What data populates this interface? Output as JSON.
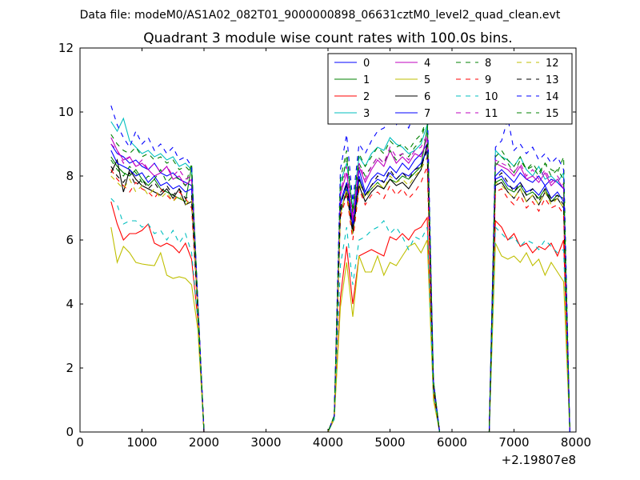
{
  "suptitle": "Data file: modeM0/AS1A02_082T01_9000000898_06631cztM0_level2_quad_clean.evt",
  "chart_data": {
    "type": "line",
    "title": "Quadrant 3 module wise count rates with 100.0s bins.",
    "xlabel": "",
    "ylabel": "",
    "x_offset_label": "+2.19807e8",
    "xlim": [
      0,
      8000
    ],
    "ylim": [
      0,
      12
    ],
    "xticks": [
      0,
      1000,
      2000,
      3000,
      4000,
      5000,
      6000,
      7000,
      8000
    ],
    "yticks": [
      0,
      2,
      4,
      6,
      8,
      10,
      12
    ],
    "legend_position": "top-right",
    "legend_columns": 4,
    "x": [
      500,
      600,
      700,
      800,
      900,
      1000,
      1100,
      1200,
      1300,
      1400,
      1500,
      1600,
      1700,
      1800,
      1900,
      2000,
      2100,
      4000,
      4100,
      4200,
      4300,
      4400,
      4500,
      4600,
      4700,
      4800,
      4900,
      5000,
      5100,
      5200,
      5300,
      5400,
      5500,
      5600,
      5700,
      5800,
      6600,
      6700,
      6800,
      6900,
      7000,
      7100,
      7200,
      7300,
      7400,
      7500,
      7600,
      7700,
      7800,
      7900
    ],
    "series": [
      {
        "name": "0",
        "color": "#0000ff",
        "dash": "solid",
        "values": [
          9.0,
          8.7,
          8.6,
          8.4,
          8.5,
          8.3,
          8.2,
          8.4,
          8.1,
          8.0,
          8.1,
          7.9,
          7.8,
          7.7,
          4.0,
          0,
          0,
          0,
          0.5,
          7.2,
          7.8,
          6.5,
          8.2,
          7.5,
          7.9,
          8.1,
          8.0,
          8.3,
          8.1,
          8.4,
          8.2,
          8.5,
          8.7,
          9.0,
          1.5,
          0,
          0,
          8.0,
          8.2,
          8.0,
          7.8,
          8.1,
          7.9,
          7.8,
          8.0,
          7.7,
          7.9,
          7.8,
          7.6,
          0
        ],
        "values_note": ""
      },
      {
        "name": "1",
        "color": "#008000",
        "dash": "solid",
        "values": [
          8.6,
          8.3,
          8.1,
          8.0,
          8.2,
          7.9,
          7.7,
          7.9,
          7.6,
          7.5,
          7.4,
          7.3,
          7.2,
          8.3,
          4.0,
          0,
          0,
          0,
          0.5,
          6.8,
          7.6,
          6.3,
          7.9,
          7.4,
          7.6,
          7.8,
          7.6,
          7.9,
          7.8,
          8.0,
          7.9,
          8.1,
          8.3,
          9.5,
          1.5,
          0,
          0,
          7.8,
          7.9,
          7.6,
          7.5,
          7.7,
          7.4,
          7.5,
          7.3,
          7.6,
          7.2,
          7.4,
          7.3,
          0
        ]
      },
      {
        "name": "2",
        "color": "#ff0000",
        "dash": "solid",
        "values": [
          7.2,
          6.5,
          6.0,
          6.2,
          6.2,
          6.3,
          6.5,
          5.9,
          5.8,
          5.9,
          5.8,
          5.6,
          5.9,
          5.4,
          3.5,
          0,
          0,
          0,
          0.4,
          4.2,
          5.8,
          4.0,
          5.5,
          5.6,
          5.7,
          5.6,
          5.5,
          6.1,
          6.0,
          6.2,
          6.0,
          6.3,
          6.4,
          6.7,
          1.2,
          0,
          0,
          6.6,
          6.4,
          6.0,
          6.2,
          5.8,
          5.9,
          5.6,
          5.8,
          5.7,
          5.9,
          5.5,
          6.0,
          0
        ]
      },
      {
        "name": "3",
        "color": "#00bfbf",
        "dash": "solid",
        "values": [
          9.7,
          9.4,
          9.8,
          9.1,
          8.9,
          8.7,
          8.8,
          8.6,
          8.7,
          8.5,
          8.6,
          8.3,
          8.4,
          8.2,
          4.0,
          0,
          0,
          0,
          0.5,
          7.8,
          8.4,
          7.0,
          8.6,
          8.3,
          8.7,
          8.9,
          8.8,
          9.2,
          9.0,
          8.9,
          8.7,
          8.8,
          9.0,
          9.6,
          1.6,
          0,
          0,
          8.8,
          8.6,
          8.5,
          8.3,
          8.6,
          8.2,
          8.0,
          8.3,
          7.9,
          8.0,
          7.8,
          8.1,
          0
        ]
      },
      {
        "name": "4",
        "color": "#bf00bf",
        "dash": "solid",
        "values": [
          9.2,
          8.8,
          8.5,
          8.6,
          8.3,
          8.4,
          8.2,
          8.0,
          8.1,
          8.3,
          7.9,
          8.0,
          7.7,
          7.9,
          4.0,
          0,
          0,
          0,
          0.5,
          7.4,
          8.1,
          6.6,
          8.3,
          7.8,
          8.2,
          8.5,
          8.3,
          8.8,
          8.4,
          8.6,
          8.4,
          8.7,
          8.6,
          9.2,
          1.5,
          0,
          0,
          8.4,
          8.3,
          8.2,
          8.0,
          8.3,
          7.9,
          8.0,
          7.8,
          8.1,
          7.7,
          7.9,
          7.6,
          0
        ]
      },
      {
        "name": "5",
        "color": "#bfbf00",
        "dash": "solid",
        "values": [
          6.4,
          5.3,
          5.8,
          5.6,
          5.3,
          5.25,
          5.22,
          5.2,
          5.6,
          4.9,
          4.8,
          4.85,
          4.8,
          4.6,
          3.2,
          0,
          0,
          0,
          0.4,
          3.9,
          5.3,
          3.6,
          5.5,
          5.0,
          5.0,
          5.5,
          4.9,
          5.3,
          5.2,
          5.5,
          5.8,
          5.9,
          5.6,
          6.0,
          1.0,
          0,
          0,
          5.9,
          5.5,
          5.4,
          5.5,
          5.3,
          5.6,
          5.2,
          5.4,
          4.9,
          5.3,
          5.0,
          4.7,
          0
        ]
      },
      {
        "name": "6",
        "color": "#000000",
        "dash": "solid",
        "values": [
          8.1,
          8.5,
          7.5,
          8.2,
          7.9,
          7.7,
          7.6,
          7.5,
          7.4,
          7.6,
          7.3,
          7.6,
          7.1,
          7.2,
          3.8,
          0,
          0,
          0,
          0.5,
          6.9,
          7.5,
          6.2,
          7.7,
          7.2,
          7.5,
          7.7,
          7.6,
          7.9,
          7.7,
          7.8,
          7.6,
          7.9,
          8.2,
          9.0,
          1.4,
          0,
          0,
          7.7,
          7.8,
          7.5,
          7.3,
          7.6,
          7.2,
          7.4,
          7.1,
          7.5,
          7.2,
          7.3,
          7.0,
          0
        ]
      },
      {
        "name": "7",
        "color": "#0000ff",
        "dash": "solid",
        "values": [
          8.8,
          8.4,
          8.3,
          8.2,
          8.0,
          8.1,
          7.8,
          8.0,
          7.7,
          7.8,
          7.6,
          7.7,
          7.5,
          7.6,
          3.9,
          0,
          0,
          0,
          0.5,
          7.1,
          7.7,
          6.4,
          8.0,
          7.4,
          7.7,
          7.9,
          7.8,
          8.1,
          7.9,
          8.1,
          8.0,
          8.2,
          8.4,
          8.8,
          1.5,
          0,
          0,
          7.9,
          8.0,
          7.7,
          7.6,
          7.8,
          7.5,
          7.6,
          7.4,
          7.7,
          7.3,
          7.5,
          7.2,
          0
        ]
      },
      {
        "name": "8",
        "color": "#008000",
        "dash": "dashed",
        "values": [
          8.5,
          8.2,
          8.0,
          8.3,
          8.1,
          7.8,
          8.0,
          7.9,
          8.2,
          7.8,
          8.0,
          7.9,
          7.7,
          8.4,
          4.1,
          0,
          0,
          0,
          0.5,
          7.5,
          8.6,
          6.8,
          8.4,
          8.0,
          8.3,
          8.6,
          8.4,
          8.8,
          8.5,
          8.7,
          8.6,
          8.9,
          9.1,
          9.9,
          1.6,
          0,
          0,
          8.3,
          8.6,
          8.4,
          8.1,
          8.5,
          8.2,
          8.3,
          8.0,
          8.4,
          8.2,
          8.1,
          8.6,
          0
        ]
      },
      {
        "name": "9",
        "color": "#ff0000",
        "dash": "dashed",
        "values": [
          8.2,
          7.9,
          7.7,
          7.5,
          7.8,
          7.6,
          7.5,
          7.3,
          7.6,
          7.4,
          7.2,
          7.5,
          7.3,
          7.0,
          3.7,
          0,
          0,
          0,
          0.5,
          6.7,
          7.4,
          6.0,
          7.6,
          7.1,
          7.4,
          7.5,
          7.3,
          7.7,
          7.4,
          7.6,
          7.3,
          7.5,
          7.8,
          8.3,
          1.4,
          0,
          0,
          7.5,
          7.6,
          7.3,
          7.1,
          7.4,
          7.0,
          7.2,
          6.9,
          7.3,
          7.0,
          7.1,
          6.8,
          0
        ]
      },
      {
        "name": "10",
        "color": "#00bfbf",
        "dash": "dashed",
        "values": [
          7.3,
          7.1,
          6.5,
          6.6,
          6.6,
          6.4,
          6.5,
          6.2,
          6.3,
          6.0,
          6.3,
          5.9,
          6.2,
          5.6,
          3.5,
          0,
          0,
          0,
          0.4,
          5.2,
          6.4,
          4.6,
          6.0,
          6.1,
          6.3,
          6.4,
          6.6,
          6.2,
          6.4,
          6.1,
          5.7,
          6.1,
          6.0,
          6.4,
          1.2,
          0,
          0,
          6.4,
          6.2,
          6.0,
          6.1,
          5.8,
          6.0,
          5.9,
          5.7,
          6.0,
          5.8,
          5.6,
          5.7,
          0
        ]
      },
      {
        "name": "11",
        "color": "#bf00bf",
        "dash": "dashed",
        "values": [
          9.0,
          8.8,
          8.4,
          8.6,
          8.3,
          8.5,
          8.2,
          8.4,
          8.1,
          8.3,
          8.0,
          8.2,
          7.9,
          8.0,
          4.0,
          0,
          0,
          0,
          0.5,
          7.5,
          8.3,
          6.7,
          8.4,
          7.9,
          8.3,
          8.6,
          8.4,
          8.9,
          8.6,
          8.7,
          8.5,
          8.8,
          8.9,
          9.3,
          1.5,
          0,
          0,
          8.5,
          8.4,
          8.3,
          8.1,
          8.4,
          8.0,
          8.2,
          7.9,
          8.2,
          7.8,
          8.0,
          7.7,
          0
        ]
      },
      {
        "name": "12",
        "color": "#bfbf00",
        "dash": "dashed",
        "values": [
          8.0,
          7.8,
          7.6,
          7.9,
          7.5,
          7.7,
          7.4,
          7.6,
          7.3,
          7.5,
          7.2,
          7.4,
          7.1,
          7.3,
          3.8,
          0,
          0,
          0,
          0.5,
          6.8,
          7.6,
          6.2,
          7.8,
          7.3,
          7.6,
          7.8,
          7.6,
          8.0,
          7.8,
          7.9,
          7.7,
          8.0,
          8.2,
          8.6,
          1.4,
          0,
          0,
          7.8,
          7.7,
          7.5,
          7.3,
          7.6,
          7.2,
          7.4,
          7.1,
          7.5,
          7.1,
          7.3,
          7.0,
          0
        ]
      },
      {
        "name": "13",
        "color": "#000000",
        "dash": "dashed",
        "values": [
          8.3,
          8.0,
          7.8,
          8.1,
          7.7,
          7.9,
          7.6,
          7.8,
          7.5,
          7.7,
          7.4,
          7.6,
          7.3,
          7.4,
          3.8,
          0,
          0,
          0,
          0.5,
          7.0,
          7.8,
          6.3,
          7.9,
          7.4,
          7.7,
          8.0,
          7.8,
          8.2,
          7.9,
          8.1,
          7.9,
          8.2,
          8.3,
          8.8,
          1.4,
          0,
          0,
          7.9,
          8.1,
          7.8,
          7.5,
          7.8,
          7.4,
          7.6,
          7.2,
          7.6,
          7.3,
          7.4,
          7.1,
          0
        ]
      },
      {
        "name": "14",
        "color": "#0000ff",
        "dash": "dashed",
        "values": [
          10.2,
          9.6,
          9.2,
          8.9,
          9.4,
          9.0,
          9.2,
          8.8,
          9.0,
          8.7,
          8.9,
          8.5,
          8.6,
          8.3,
          4.1,
          0,
          0,
          0,
          0.5,
          8.2,
          9.3,
          7.2,
          9.0,
          8.7,
          9.1,
          9.4,
          9.5,
          9.7,
          9.6,
          9.8,
          9.5,
          10.0,
          10.2,
          10.4,
          1.6,
          0,
          0,
          8.9,
          9.1,
          9.8,
          8.8,
          9.0,
          8.7,
          8.9,
          8.5,
          8.7,
          8.4,
          8.6,
          8.2,
          0
        ]
      },
      {
        "name": "15",
        "color": "#008000",
        "dash": "dashed",
        "values": [
          9.3,
          9.0,
          8.8,
          8.7,
          8.9,
          8.6,
          8.7,
          8.5,
          8.6,
          8.4,
          8.5,
          8.2,
          8.3,
          8.1,
          4.0,
          0,
          0,
          0,
          0.5,
          7.9,
          8.8,
          6.9,
          8.7,
          8.3,
          8.6,
          8.9,
          8.7,
          9.1,
          8.9,
          9.0,
          8.8,
          9.1,
          9.3,
          9.8,
          1.6,
          0,
          0,
          8.6,
          8.8,
          8.5,
          8.3,
          8.6,
          8.2,
          8.4,
          8.1,
          8.4,
          8.0,
          8.2,
          7.9,
          0
        ]
      }
    ]
  }
}
